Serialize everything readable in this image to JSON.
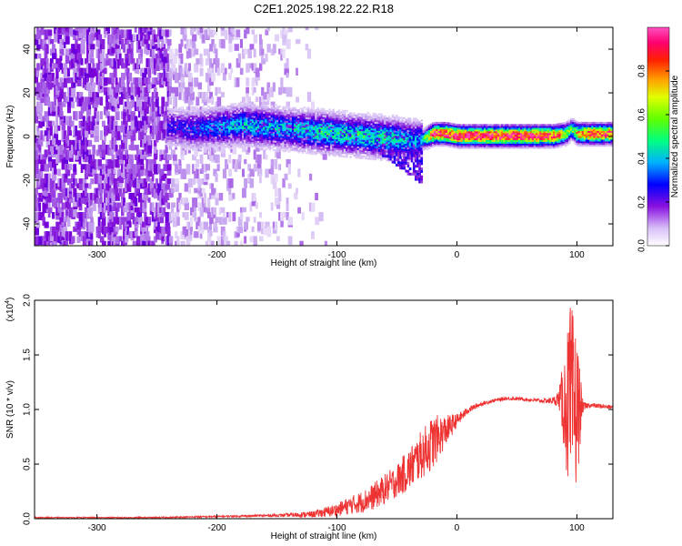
{
  "title": "C2E1.2025.198.22.22.R18",
  "chart_data": [
    {
      "type": "heatmap",
      "xlabel": "Height of straight line (km)",
      "ylabel": "Frequency (Hz)",
      "xlim": [
        -352,
        130
      ],
      "ylim": [
        -50,
        50
      ],
      "x_ticks": [
        -300,
        -200,
        -100,
        0,
        100
      ],
      "x_tick_labels": [
        "-300",
        "-200",
        "-100",
        "0",
        "100"
      ],
      "y_ticks": [
        -40,
        -20,
        0,
        20,
        40
      ],
      "y_tick_labels": [
        "-40",
        "-20",
        "0",
        "20",
        "40"
      ],
      "colorbar": {
        "label": "Normalized spectral amplitude",
        "range": [
          0.0,
          1.0
        ],
        "ticks": [
          0.0,
          0.2,
          0.4,
          0.6,
          0.8
        ],
        "tick_labels": [
          "0.0",
          "0.2",
          "0.4",
          "0.6",
          "0.8"
        ],
        "colormap": [
          "#ffffff",
          "#c8a8f0",
          "#7a00d8",
          "#0000ff",
          "#00d0ff",
          "#00ff60",
          "#b0ff00",
          "#ffd000",
          "#ff6000",
          "#ff0060",
          "#ff40b0"
        ]
      },
      "ridge": {
        "description_x": [
          -240,
          -220,
          -200,
          -180,
          -160,
          -140,
          -120,
          -100,
          -80,
          -60,
          -40,
          -30,
          -20,
          -10,
          0,
          20,
          40,
          60,
          80,
          90,
          95,
          100,
          110,
          120,
          130
        ],
        "center_freq": [
          4,
          3,
          4,
          5,
          4,
          3,
          2,
          1,
          0,
          -1,
          -2,
          -2,
          1,
          1,
          0,
          0,
          0,
          0,
          0,
          1,
          3,
          1,
          1,
          1,
          1
        ],
        "amplitude": [
          0.25,
          0.3,
          0.35,
          0.4,
          0.4,
          0.4,
          0.45,
          0.45,
          0.45,
          0.45,
          0.4,
          0.35,
          0.9,
          0.9,
          0.95,
          0.95,
          0.95,
          0.95,
          0.9,
          0.6,
          0.5,
          0.75,
          0.85,
          0.85,
          0.85
        ]
      },
      "noise_region_x": [
        -352,
        -140
      ],
      "grid": false
    },
    {
      "type": "line",
      "xlabel": "Height of straight line (km)",
      "ylabel": "SNR (10 * v/v)",
      "y_multiplier_label": "(x10",
      "y_multiplier_exp": "4",
      "y_multiplier_close": ")",
      "xlim": [
        -352,
        130
      ],
      "ylim": [
        0,
        2.0
      ],
      "x_ticks": [
        -300,
        -200,
        -100,
        0,
        100
      ],
      "x_tick_labels": [
        "-300",
        "-200",
        "-100",
        "0",
        "100"
      ],
      "y_ticks": [
        0.0,
        0.5,
        1.0,
        1.5,
        2.0
      ],
      "y_tick_labels": [
        "0.0",
        "0.5",
        "1.0",
        "1.5",
        "2.0"
      ],
      "series": [
        {
          "color": "#ee3333",
          "x": [
            -352,
            -300,
            -250,
            -200,
            -150,
            -120,
            -100,
            -90,
            -80,
            -70,
            -60,
            -50,
            -40,
            -30,
            -20,
            -10,
            0,
            10,
            20,
            30,
            40,
            50,
            60,
            70,
            80,
            85,
            90,
            95,
            100,
            105,
            110,
            120,
            130
          ],
          "y": [
            0.01,
            0.01,
            0.01,
            0.02,
            0.03,
            0.04,
            0.08,
            0.12,
            0.15,
            0.2,
            0.27,
            0.35,
            0.45,
            0.58,
            0.7,
            0.8,
            0.9,
            1.0,
            1.05,
            1.08,
            1.1,
            1.1,
            1.09,
            1.08,
            1.08,
            1.1,
            1.05,
            1.0,
            1.0,
            1.02,
            1.04,
            1.03,
            1.02
          ],
          "noise_amp": [
            0.005,
            0.005,
            0.006,
            0.008,
            0.012,
            0.03,
            0.06,
            0.08,
            0.1,
            0.12,
            0.14,
            0.15,
            0.2,
            0.22,
            0.25,
            0.15,
            0.06,
            0.03,
            0.02,
            0.015,
            0.015,
            0.015,
            0.015,
            0.02,
            0.03,
            0.08,
            0.5,
            1.0,
            0.7,
            0.05,
            0.02,
            0.02,
            0.02
          ]
        }
      ],
      "grid": false
    }
  ]
}
